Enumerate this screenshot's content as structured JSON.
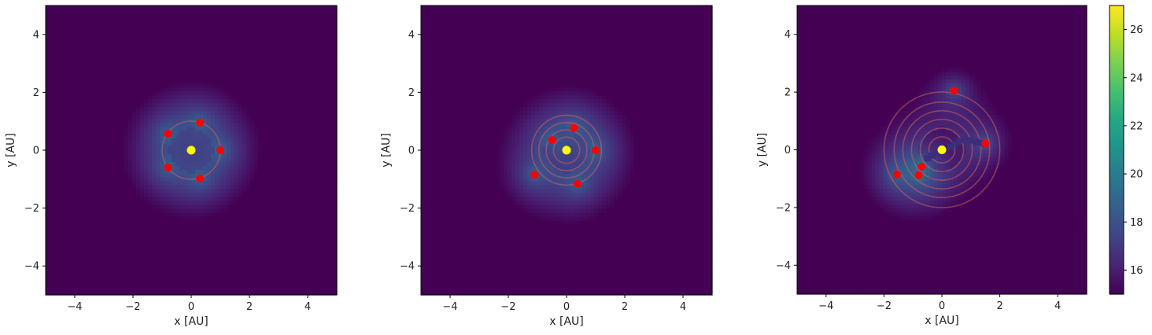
{
  "chart_data": [
    {
      "type": "heatmap",
      "title": "",
      "xlabel": "x [AU]",
      "ylabel": "y [AU]",
      "xlim": [
        -5,
        5
      ],
      "ylim": [
        -5,
        5
      ],
      "xticks": [
        -4,
        -2,
        0,
        2,
        4
      ],
      "yticks": [
        -4,
        -2,
        0,
        2,
        4
      ],
      "grid": false,
      "planets": [
        [
          0.3,
          0.95
        ],
        [
          1.0,
          0.0
        ],
        [
          0.3,
          -0.97
        ],
        [
          -0.8,
          -0.6
        ],
        [
          -0.8,
          0.57
        ]
      ],
      "star": [
        0,
        0
      ],
      "orbit_radii": [
        1.0
      ],
      "trail": []
    },
    {
      "type": "heatmap",
      "title": "",
      "xlabel": "x [AU]",
      "ylabel": "y [AU]",
      "xlim": [
        -5,
        5
      ],
      "ylim": [
        -5,
        5
      ],
      "xticks": [
        -4,
        -2,
        0,
        2,
        4
      ],
      "yticks": [
        -4,
        -2,
        0,
        2,
        4
      ],
      "grid": false,
      "planets": [
        [
          0.25,
          0.77
        ],
        [
          1.0,
          0.0
        ],
        [
          0.38,
          -1.17
        ],
        [
          -1.1,
          -0.85
        ],
        [
          -0.5,
          0.35
        ]
      ],
      "star": [
        0,
        0
      ],
      "orbit_radii": [
        0.45,
        0.7,
        0.95,
        1.2
      ],
      "trail": []
    },
    {
      "type": "heatmap",
      "title": "",
      "xlabel": "x [AU]",
      "ylabel": "y [AU]",
      "xlim": [
        -5,
        5
      ],
      "ylim": [
        -5,
        5
      ],
      "xticks": [
        -4,
        -2,
        0,
        2,
        4
      ],
      "yticks": [
        -4,
        -2,
        0,
        2,
        4
      ],
      "grid": false,
      "planets": [
        [
          0.42,
          2.05
        ],
        [
          1.5,
          0.22
        ],
        [
          -0.7,
          -0.58
        ],
        [
          -0.8,
          -0.88
        ],
        [
          -1.55,
          -0.85
        ]
      ],
      "star": [
        0,
        0
      ],
      "orbit_radii": [
        0.45,
        0.75,
        1.05,
        1.35,
        1.65,
        2.0
      ],
      "trail": [
        [
          0.3,
          0.1
        ],
        [
          0.45,
          0.2
        ],
        [
          0.6,
          0.3
        ],
        [
          0.8,
          0.35
        ],
        [
          1.0,
          0.32
        ],
        [
          1.2,
          0.28
        ],
        [
          1.4,
          0.23
        ],
        [
          -0.15,
          -0.1
        ],
        [
          -0.35,
          -0.2
        ],
        [
          -0.5,
          -0.3
        ]
      ]
    }
  ],
  "colorbar": {
    "vmin": 15,
    "vmax": 27,
    "ticks": [
      16,
      18,
      20,
      22,
      24,
      26
    ],
    "colormap": "viridis"
  },
  "colors": {
    "planet": "#ff0000",
    "star": "#ffff00",
    "orbit": "#c86464"
  }
}
